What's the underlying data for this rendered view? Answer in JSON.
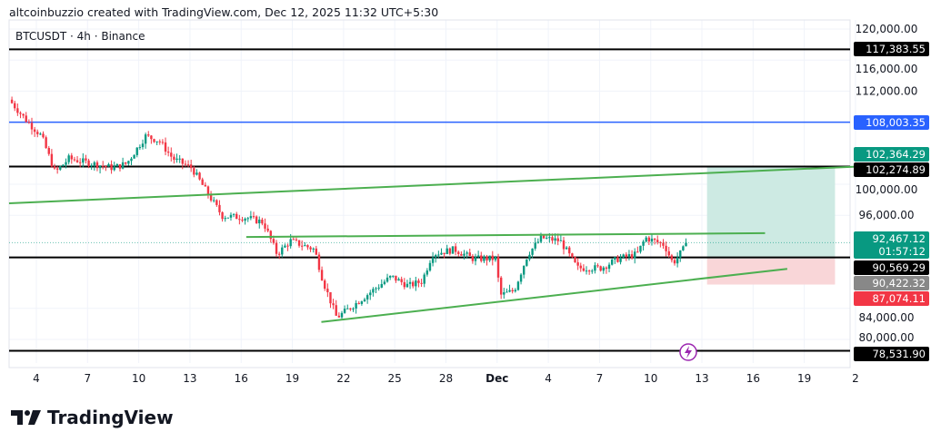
{
  "header": {
    "credit": "altcoinbuzzio created with TradingView.com, Dec 12, 2025 11:32 UTC+5:30",
    "symbol": "BTCUSDT · 4h · Binance"
  },
  "logo": {
    "text": "TradingView"
  },
  "colors": {
    "up": "#089981",
    "down": "#f23645",
    "trend": "#4caf50",
    "blue": "#2962ff",
    "profit": "#cdeae3",
    "loss": "#f9d6d8"
  },
  "chart_data": {
    "type": "candlestick",
    "ylim": [
      76000,
      121500
    ],
    "y_ticks": [
      "120,000.00",
      "116,000.00",
      "112,000.00",
      "100,000.00",
      "96,000.00",
      "84,000.00",
      "80,000.00"
    ],
    "y_tick_values": [
      120000,
      116000,
      112000,
      100000,
      96000,
      84000,
      80000
    ],
    "x_ticks": [
      {
        "t": 4,
        "label": "4"
      },
      {
        "t": 7,
        "label": "7"
      },
      {
        "t": 10,
        "label": "10"
      },
      {
        "t": 13,
        "label": "13"
      },
      {
        "t": 16,
        "label": "16"
      },
      {
        "t": 19,
        "label": "19"
      },
      {
        "t": 22,
        "label": "22"
      },
      {
        "t": 25,
        "label": "25"
      },
      {
        "t": 28,
        "label": "28"
      },
      {
        "t": 31,
        "label": "Dec"
      },
      {
        "t": 34,
        "label": "4"
      },
      {
        "t": 37,
        "label": "7"
      },
      {
        "t": 40,
        "label": "10"
      },
      {
        "t": 43,
        "label": "13"
      },
      {
        "t": 46,
        "label": "16"
      },
      {
        "t": 49,
        "label": "19"
      },
      {
        "t": 52,
        "label": "2"
      }
    ],
    "xlim": [
      2.4,
      52
    ],
    "price_path": [
      [
        2.4,
        110900
      ],
      [
        3.5,
        108000
      ],
      [
        4.3,
        106200
      ],
      [
        5.1,
        101500
      ],
      [
        5.9,
        103300
      ],
      [
        7.2,
        102700
      ],
      [
        8.5,
        102100
      ],
      [
        9.3,
        102700
      ],
      [
        10.4,
        106200
      ],
      [
        11.2,
        105600
      ],
      [
        12,
        103300
      ],
      [
        13.1,
        102100
      ],
      [
        14.1,
        98600
      ],
      [
        14.9,
        95900
      ],
      [
        16.3,
        95700
      ],
      [
        17.3,
        95100
      ],
      [
        18.1,
        91000
      ],
      [
        18.9,
        92700
      ],
      [
        20.3,
        91600
      ],
      [
        20.8,
        87500
      ],
      [
        21.6,
        82800
      ],
      [
        22.7,
        84600
      ],
      [
        23.7,
        86300
      ],
      [
        24.8,
        88100
      ],
      [
        25.8,
        86900
      ],
      [
        26.6,
        87500
      ],
      [
        27.2,
        91000
      ],
      [
        28.5,
        91600
      ],
      [
        29.6,
        90400
      ],
      [
        30.9,
        90400
      ],
      [
        31.2,
        85700
      ],
      [
        32,
        86300
      ],
      [
        32.8,
        91000
      ],
      [
        33.6,
        93100
      ],
      [
        34.7,
        92700
      ],
      [
        35.7,
        89200
      ],
      [
        37.1,
        89200
      ],
      [
        38.1,
        90400
      ],
      [
        39.2,
        91000
      ],
      [
        39.7,
        93100
      ],
      [
        40.8,
        92200
      ],
      [
        41.3,
        89800
      ],
      [
        42.2,
        92467
      ]
    ],
    "levels": [
      {
        "price": 117383.55,
        "label": "117,383.55",
        "color": "#000000"
      },
      {
        "price": 108003.35,
        "label": "108,003.35",
        "color": "#2962ff"
      },
      {
        "price": 102274.89,
        "label": "102,274.89",
        "color": "#000000"
      },
      {
        "price": 90569.29,
        "label": "90,569.29",
        "color": "#000000"
      },
      {
        "price": 78531.9,
        "label": "78,531.90",
        "color": "#000000"
      }
    ],
    "trendlines": [
      {
        "from": [
          2.4,
          97550
        ],
        "to": [
          52,
          102270
        ]
      },
      {
        "from": [
          16.3,
          93200
        ],
        "to": [
          46.7,
          93700
        ]
      },
      {
        "from": [
          20.7,
          82250
        ],
        "to": [
          48,
          89100
        ]
      }
    ],
    "position": {
      "t_start": 43.3,
      "t_end": 50.8,
      "target": 102364.29,
      "entry": 90422.32,
      "stop": 87074.11
    },
    "price_tags": {
      "target": "102,364.29",
      "last": "92,467.12",
      "countdown": "01:57:12",
      "entry": "90,422.32",
      "stop": "87,074.11"
    },
    "last_price": 92467.12
  }
}
